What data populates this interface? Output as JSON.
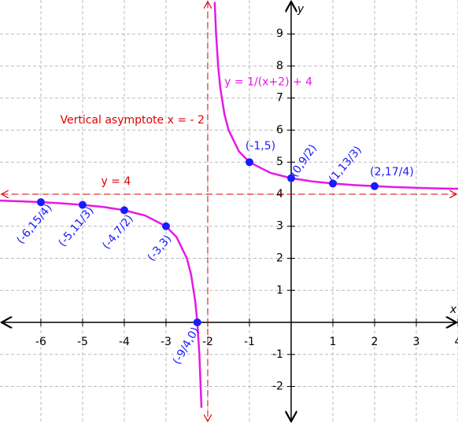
{
  "chart_data": {
    "type": "line",
    "xlim": [
      -6.98,
      4
    ],
    "ylim": [
      -3.14,
      10.06
    ],
    "xticks": [
      -6,
      -5,
      -4,
      -3,
      -2,
      -1,
      1,
      2,
      3,
      4
    ],
    "yticks": [
      -2,
      -1,
      1,
      2,
      3,
      4,
      5,
      6,
      7,
      8,
      9
    ],
    "grid": true,
    "x_label": "x",
    "y_label": "y",
    "equation": "y = 1/(x+2) + 4",
    "series": [
      {
        "color": "#e619e6",
        "x": [
          -7,
          -6.5,
          -6,
          -5.5,
          -5,
          -4.5,
          -4,
          -3.5,
          -3,
          -2.75,
          -2.5,
          -2.4,
          -2.3,
          -2.25,
          -2.2,
          -2.15
        ],
        "values": [
          3.8,
          3.778,
          3.75,
          3.714,
          3.667,
          3.6,
          3.5,
          3.333,
          3,
          2.667,
          2,
          1.5,
          0.667,
          0,
          -1,
          -2.667
        ]
      },
      {
        "color": "#e619e6",
        "x": [
          -1.833,
          -1.8,
          -1.75,
          -1.7,
          -1.6,
          -1.5,
          -1.25,
          -1,
          -0.5,
          0,
          0.5,
          1,
          1.5,
          2,
          2.5,
          3,
          3.5,
          4
        ],
        "values": [
          10,
          9,
          8,
          7.333,
          6.5,
          6,
          5.333,
          5,
          4.667,
          4.5,
          4.4,
          4.333,
          4.286,
          4.25,
          4.222,
          4.2,
          4.182,
          4.167
        ]
      }
    ],
    "points": {
      "color": "#1a1aff",
      "x": [
        -6,
        -5,
        -4,
        -3,
        -2.25,
        -1,
        0,
        1,
        2
      ],
      "values": [
        3.75,
        3.667,
        3.5,
        3,
        0,
        5,
        4.5,
        4.333,
        4.25
      ],
      "labels": [
        "(-6,15/4)",
        "(-5,11/3)",
        "(-4,7/2)",
        "(-3,3)",
        "(-9/4,0)",
        "(-1,5)",
        "(0,9/2)",
        "(1,13/3)",
        "(2,17/4)"
      ]
    },
    "asymptote_color": "#e00000",
    "asymptotes": [
      {
        "label": "Vertical asymptote x = - 2",
        "x": -2
      },
      {
        "label": "y = 4",
        "y": 4
      }
    ]
  }
}
